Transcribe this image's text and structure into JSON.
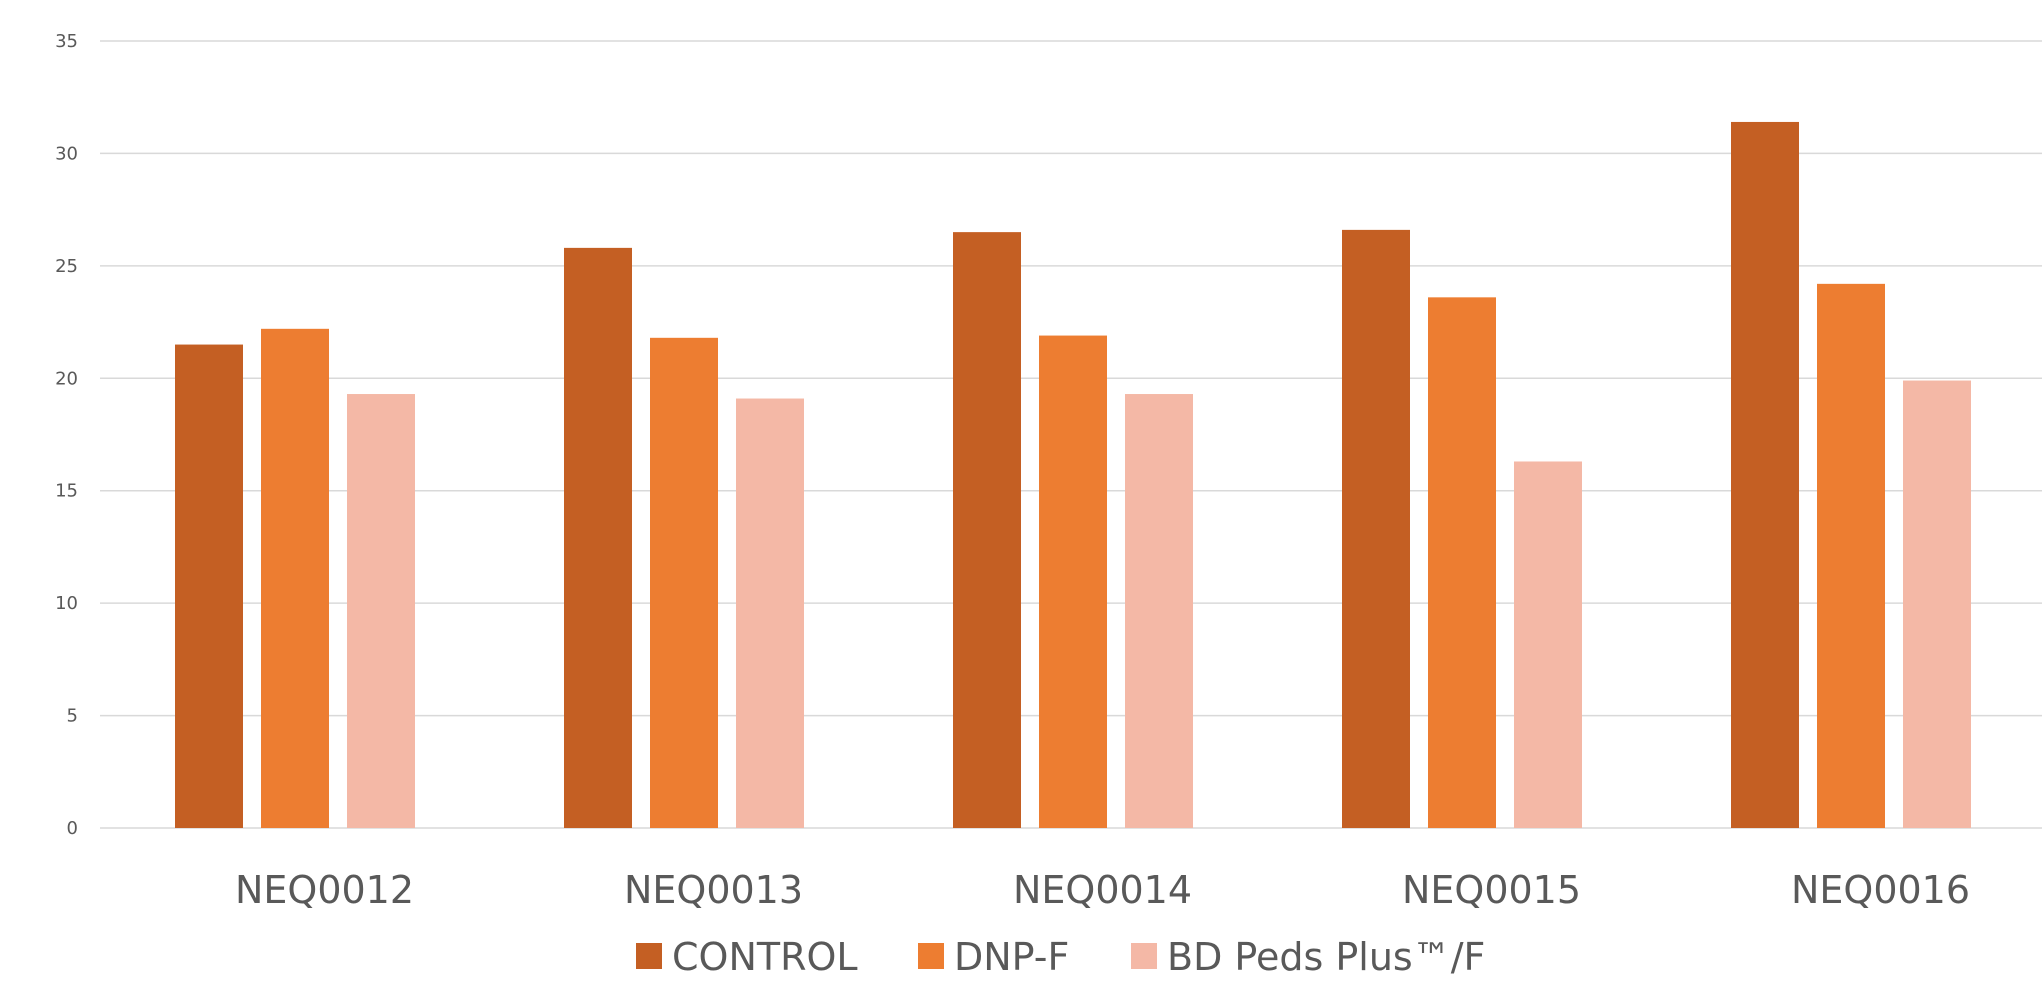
{
  "chart_data": {
    "type": "bar",
    "title": "",
    "xlabel": "",
    "ylabel": "",
    "categories": [
      "NEQ0012",
      "NEQ0013",
      "NEQ0014",
      "NEQ0015",
      "NEQ0016"
    ],
    "series": [
      {
        "name": "CONTROL",
        "color": "#c45f23",
        "values": [
          21.5,
          25.8,
          26.5,
          26.6,
          31.4
        ]
      },
      {
        "name": "DNP-F",
        "color": "#ed7d31",
        "values": [
          22.2,
          21.8,
          21.9,
          23.6,
          24.2
        ]
      },
      {
        "name": "BD Peds Plus™/F",
        "color": "#f4b8a6",
        "values": [
          19.3,
          19.1,
          19.3,
          16.3,
          19.9
        ]
      }
    ],
    "ylim": [
      0,
      35
    ],
    "yticks": [
      0,
      5,
      10,
      15,
      20,
      25,
      30,
      35
    ],
    "grid": true,
    "legend_position": "bottom-center"
  }
}
